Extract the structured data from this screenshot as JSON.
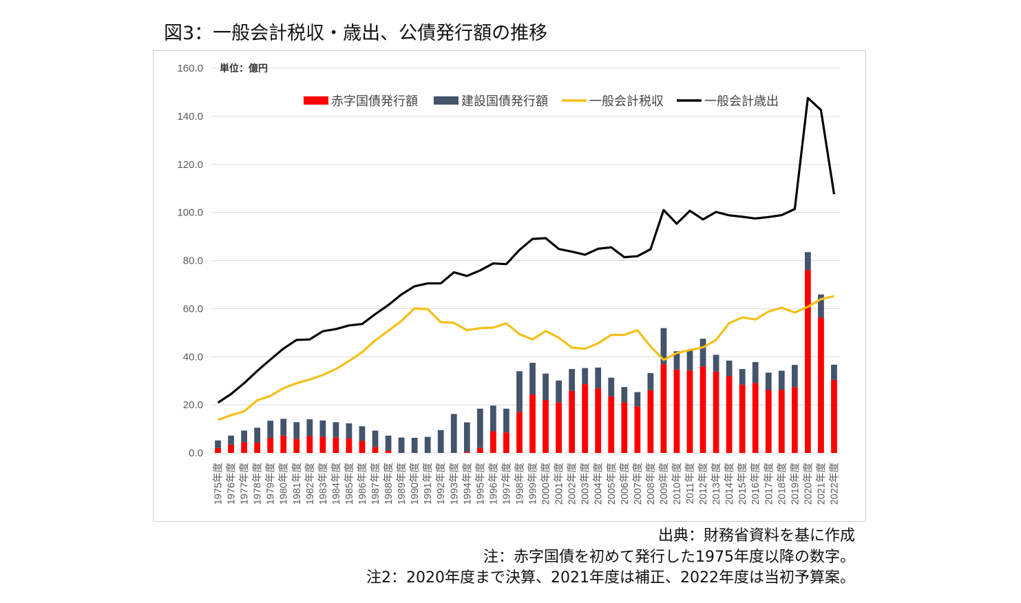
{
  "title": "図3：一般会計税収・歳出、公債発行額の推移",
  "notes": {
    "source": "出典：財務省資料を基に作成",
    "note1": "注：赤字国債を初めて発行した1975年度以降の数字。",
    "note2": "注2：2020年度まで決算、2021年度は補正、2022年度は当初予算案。"
  },
  "colors": {
    "deficit": "#ff0000",
    "construction": "#44546a",
    "tax": "#f5bf16",
    "expenditure": "#000000",
    "grid": "#d9d9d9"
  },
  "chart_data": {
    "type": "bar",
    "unit_label": "単位：億円",
    "ylim": [
      0,
      160
    ],
    "yticks": [
      "0.0",
      "20.0",
      "40.0",
      "60.0",
      "80.0",
      "100.0",
      "120.0",
      "140.0",
      "160.0"
    ],
    "legend": [
      "赤字国債発行額",
      "建設国債発行額",
      "一般会計税収",
      "一般会計歳出"
    ],
    "legend_position": "top",
    "grid": true,
    "categories": [
      "1975年度",
      "1976年度",
      "1977年度",
      "1978年度",
      "1979年度",
      "1980年度",
      "1981年度",
      "1982年度",
      "1983年度",
      "1984年度",
      "1985年度",
      "1986年度",
      "1987年度",
      "1988年度",
      "1989年度",
      "1990年度",
      "1991年度",
      "1992年度",
      "1993年度",
      "1994年度",
      "1995年度",
      "1996年度",
      "1997年度",
      "1998年度",
      "1999年度",
      "2000年度",
      "2001年度",
      "2002年度",
      "2003年度",
      "2004年度",
      "2005年度",
      "2006年度",
      "2007年度",
      "2008年度",
      "2009年度",
      "2010年度",
      "2011年度",
      "2012年度",
      "2013年度",
      "2014年度",
      "2015年度",
      "2016年度",
      "2017年度",
      "2018年度",
      "2019年度",
      "2020年度",
      "2021年度",
      "2022年度"
    ],
    "series": [
      {
        "name": "赤字国債発行額",
        "kind": "stacked-bar",
        "values": [
          2.1,
          3.5,
          4.5,
          4.3,
          6.3,
          7.2,
          5.8,
          7.0,
          6.7,
          6.4,
          6.0,
          5.0,
          2.5,
          1.0,
          0,
          0,
          0,
          0,
          0,
          0.4,
          2.1,
          9.0,
          8.5,
          17.0,
          24.3,
          21.9,
          21.0,
          25.8,
          28.6,
          26.8,
          23.5,
          21.0,
          19.3,
          26.1,
          36.9,
          34.7,
          34.4,
          36.0,
          33.8,
          31.9,
          28.4,
          29.1,
          26.2,
          26.2,
          27.4,
          76.0,
          56.4,
          30.4
        ]
      },
      {
        "name": "建設国債発行額",
        "kind": "stacked-bar",
        "values": [
          3.1,
          3.7,
          4.8,
          6.2,
          7.1,
          7.0,
          7.0,
          7.0,
          6.8,
          6.4,
          6.3,
          6.1,
          6.8,
          6.2,
          6.4,
          6.3,
          6.7,
          9.5,
          16.2,
          12.3,
          16.3,
          10.7,
          9.9,
          17.0,
          13.2,
          11.1,
          9.1,
          9.1,
          6.7,
          8.7,
          7.8,
          6.4,
          6.0,
          7.1,
          15.0,
          7.6,
          8.2,
          11.5,
          7.0,
          6.5,
          6.5,
          8.7,
          7.2,
          8.0,
          9.2,
          7.5,
          9.5,
          6.3
        ]
      },
      {
        "name": "一般会計税収",
        "kind": "line",
        "values": [
          13.7,
          15.7,
          17.3,
          21.9,
          23.7,
          26.9,
          29.0,
          30.5,
          32.4,
          34.9,
          38.2,
          41.9,
          46.8,
          50.8,
          54.9,
          60.1,
          59.8,
          54.4,
          54.1,
          51.0,
          51.9,
          52.1,
          53.9,
          49.4,
          47.2,
          50.7,
          47.9,
          43.8,
          43.3,
          45.6,
          49.1,
          49.1,
          51.0,
          44.3,
          38.7,
          41.5,
          42.8,
          43.9,
          47.0,
          54.0,
          56.3,
          55.5,
          58.8,
          60.4,
          58.4,
          60.8,
          63.9,
          65.2
        ]
      },
      {
        "name": "一般会計歳出",
        "kind": "line",
        "values": [
          20.9,
          24.5,
          29.0,
          34.1,
          38.8,
          43.4,
          47.0,
          47.2,
          50.6,
          51.5,
          53.0,
          53.6,
          57.7,
          61.5,
          65.9,
          69.3,
          70.5,
          70.5,
          75.1,
          73.6,
          75.9,
          78.8,
          78.5,
          84.4,
          89.0,
          89.3,
          84.8,
          83.7,
          82.4,
          84.9,
          85.5,
          81.4,
          81.8,
          84.7,
          101.0,
          95.3,
          100.7,
          97.1,
          100.2,
          98.8,
          98.2,
          97.5,
          98.1,
          98.9,
          101.4,
          147.6,
          142.6,
          107.6
        ]
      }
    ]
  }
}
